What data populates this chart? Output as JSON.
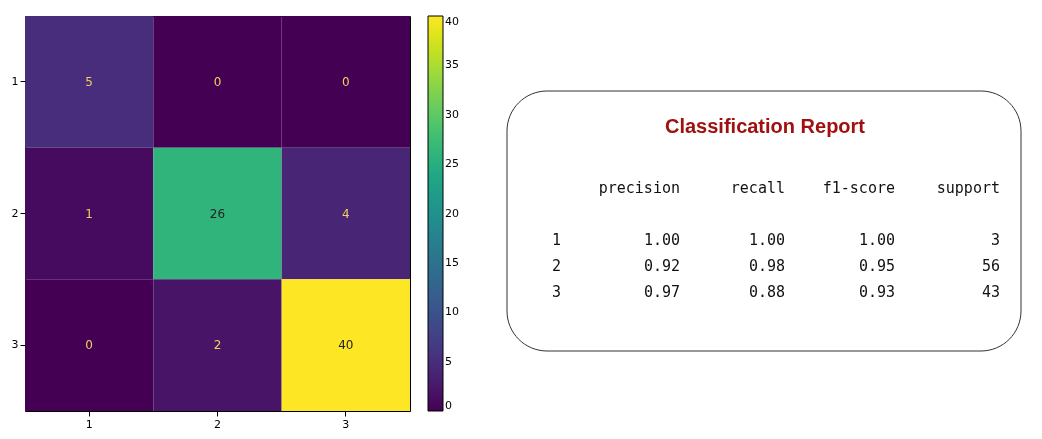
{
  "chart_data": [
    {
      "type": "heatmap",
      "categories": [
        "1",
        "2",
        "3"
      ],
      "y_categories": [
        "1",
        "2",
        "3"
      ],
      "cells": [
        [
          5,
          0,
          0
        ],
        [
          1,
          26,
          4
        ],
        [
          0,
          2,
          40
        ]
      ],
      "clim": [
        0,
        40
      ],
      "cticks": [
        0,
        5,
        10,
        15,
        20,
        25,
        30,
        35,
        40
      ],
      "data_labels": true
    },
    {
      "type": "other",
      "title": "Classification Report",
      "annotations": [
        "precision recall f1-score support",
        "1 1.00 1.00 1.00 3",
        "2 0.92 0.98 0.95 56",
        "3 0.97 0.88 0.93 43"
      ]
    }
  ]
}
